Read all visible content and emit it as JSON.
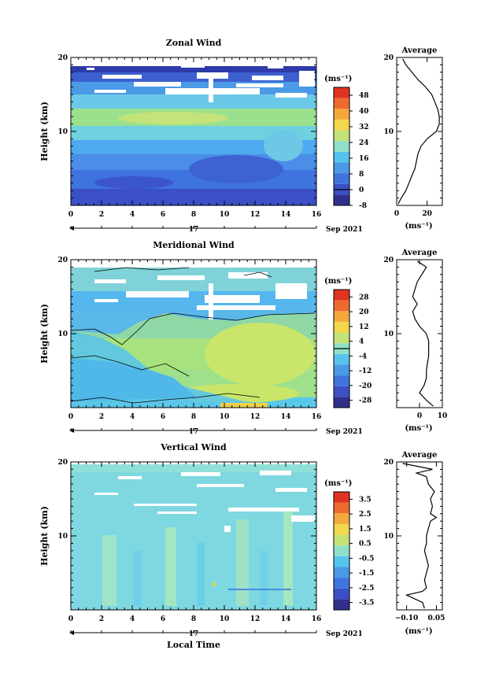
{
  "xlabel": "Local Time",
  "date_label": "Sep 2021",
  "day_label": "17",
  "chart_data": [
    {
      "type": "heatmap",
      "title": "Zonal Wind",
      "ylabel": "Height (km)",
      "xlabel": "Local Time",
      "xlim": [
        0,
        16
      ],
      "ylim": [
        0,
        20
      ],
      "xticks": [
        0,
        2,
        4,
        6,
        8,
        10,
        12,
        14,
        16
      ],
      "yticks": [
        10,
        20
      ],
      "colorbar": {
        "unit": "(ms⁻¹)",
        "ticks": [
          -8,
          0,
          8,
          16,
          24,
          32,
          40,
          48
        ],
        "range": [
          -8,
          52
        ]
      },
      "profile": {
        "title": "Average",
        "xlabel": "(ms⁻¹)",
        "xlim": [
          0,
          30
        ],
        "xticks": [
          0,
          20
        ],
        "heights": [
          0.2,
          1,
          2,
          3,
          4,
          5,
          6,
          7,
          8,
          9,
          10,
          11,
          12,
          13,
          14,
          15,
          16,
          17,
          18,
          19,
          19.8
        ],
        "values": [
          1,
          3,
          6,
          8,
          10,
          12,
          13,
          14,
          16,
          20,
          26,
          28,
          28,
          27,
          25,
          23,
          19,
          14,
          10,
          6,
          4
        ]
      }
    },
    {
      "type": "heatmap",
      "title": "Meridional Wind",
      "ylabel": "Height (km)",
      "xlabel": "Local Time",
      "xlim": [
        0,
        16
      ],
      "ylim": [
        0,
        20
      ],
      "xticks": [
        0,
        2,
        4,
        6,
        8,
        10,
        12,
        14,
        16
      ],
      "yticks": [
        10,
        20
      ],
      "colorbar": {
        "unit": "(ms⁻¹)",
        "ticks": [
          -28,
          -20,
          -12,
          -4,
          4,
          12,
          20,
          28
        ],
        "range": [
          -32,
          32
        ]
      },
      "profile": {
        "title": "Average",
        "xlabel": "(ms⁻¹)",
        "xlim": [
          -10,
          10
        ],
        "xticks": [
          0,
          10
        ],
        "heights": [
          0.2,
          1,
          2,
          3,
          4,
          5,
          6,
          7,
          8,
          9,
          10,
          11,
          12,
          13,
          14,
          15,
          16,
          17,
          18,
          19,
          19.8
        ],
        "values": [
          6,
          3,
          0,
          2,
          3,
          3,
          3.5,
          4,
          4,
          4,
          3,
          0,
          -2,
          -3,
          -1,
          -3,
          -2,
          -1,
          1,
          3,
          -1
        ]
      }
    },
    {
      "type": "heatmap",
      "title": "Vertical Wind",
      "ylabel": "Height (km)",
      "xlabel": "Local Time",
      "xlim": [
        0,
        16
      ],
      "ylim": [
        0,
        20
      ],
      "xticks": [
        0,
        2,
        4,
        6,
        8,
        10,
        12,
        14,
        16
      ],
      "yticks": [
        10,
        20
      ],
      "colorbar": {
        "unit": "(ms⁻¹)",
        "ticks": [
          -3.5,
          -2.5,
          -1.5,
          -0.5,
          0.5,
          1.5,
          2.5,
          3.5
        ],
        "range": [
          -4,
          4
        ]
      },
      "profile": {
        "title": "Average",
        "xlabel": "(ms⁻¹)",
        "xlim": [
          -0.15,
          0.08
        ],
        "xticks": [
          -0.1,
          0.05
        ],
        "tick_labels": [
          "−0.10",
          "0.05"
        ],
        "heights": [
          0.2,
          1,
          2,
          2.5,
          3,
          4,
          5,
          6,
          7,
          8,
          9,
          10,
          11,
          12,
          12.5,
          13,
          14,
          15,
          16,
          17,
          18,
          18.5,
          19,
          19.8
        ],
        "values": [
          -0.01,
          -0.02,
          -0.1,
          -0.02,
          0.0,
          -0.01,
          0.0,
          0.01,
          0.0,
          -0.01,
          0.0,
          0.0,
          0.01,
          0.02,
          0.05,
          0.02,
          0.03,
          0.02,
          0.04,
          0.01,
          0.0,
          -0.05,
          0.03,
          -0.12
        ]
      }
    }
  ]
}
